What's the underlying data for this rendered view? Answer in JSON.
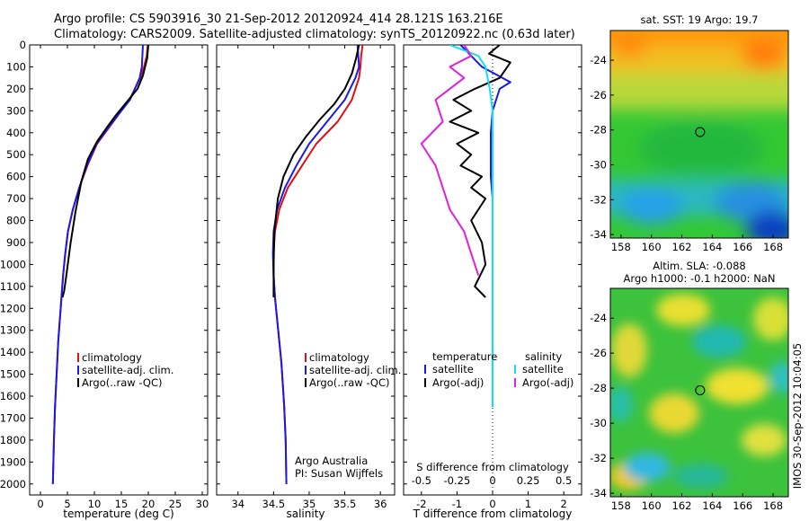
{
  "header": {
    "line1": "Argo profile: CS 5903916_30 21-Sep-2012 20120924_414 28.121S 163.216E",
    "line2": "Climatology: CARS2009. Satellite-adjusted climatology: synTS_20120922.nc (0.63d later)"
  },
  "colors": {
    "climatology": "#e01010",
    "satellite": "#1a1ae8",
    "argo": "#000000",
    "sal_satellite": "#10e0f0",
    "sal_argo": "#e020e0"
  },
  "chart_data": [
    {
      "type": "line",
      "xlabel": "temperature (deg C)",
      "xlim": [
        -2,
        31
      ],
      "xticks": [
        0,
        5,
        10,
        15,
        20,
        25,
        30
      ],
      "ylim": [
        0,
        2050
      ],
      "yticks": [
        0,
        100,
        200,
        300,
        400,
        500,
        600,
        700,
        800,
        900,
        1000,
        1100,
        1200,
        1300,
        1400,
        1500,
        1600,
        1700,
        1800,
        1900,
        2000
      ],
      "yaxis_reversed": true,
      "legend": [
        "climatology",
        "satellite-adj. clim.",
        "Argo(..raw -QC)"
      ],
      "legend_placement": "lower-right",
      "series": [
        {
          "name": "climatology",
          "x": [
            19.9,
            19.7,
            19.2,
            18.5,
            16.5,
            13.5,
            10.5,
            8.7,
            7.2,
            6.0,
            5.1,
            4.6,
            4.2,
            3.9,
            3.6,
            3.3,
            3.1,
            2.9,
            2.7,
            2.5,
            2.3
          ],
          "y": [
            0,
            50,
            100,
            150,
            250,
            350,
            450,
            550,
            650,
            750,
            850,
            950,
            1050,
            1150,
            1250,
            1350,
            1450,
            1550,
            1650,
            1800,
            2000
          ]
        },
        {
          "name": "satellite-adj. clim.",
          "x": [
            19.0,
            18.9,
            18.8,
            18.4,
            16.6,
            13.4,
            10.4,
            8.6,
            7.2,
            6.0,
            5.1,
            4.6,
            4.2,
            3.9,
            3.6,
            3.3,
            3.1,
            2.9,
            2.7,
            2.5,
            2.3
          ],
          "y": [
            0,
            50,
            100,
            150,
            250,
            350,
            450,
            550,
            650,
            750,
            850,
            950,
            1050,
            1150,
            1250,
            1350,
            1450,
            1550,
            1650,
            1800,
            2000
          ]
        },
        {
          "name": "Argo(..raw -QC)",
          "x": [
            20.0,
            19.8,
            19.0,
            18.0,
            16.0,
            14.0,
            12.2,
            10.5,
            8.8,
            7.6,
            6.5,
            5.6,
            4.8,
            4.4,
            4.1
          ],
          "y": [
            0,
            60,
            140,
            200,
            260,
            320,
            380,
            440,
            520,
            620,
            760,
            900,
            1050,
            1120,
            1150
          ]
        }
      ]
    },
    {
      "type": "line",
      "xlabel": "salinity",
      "xlim": [
        33.7,
        36.2
      ],
      "xticks": [
        34,
        34.5,
        35,
        35.5,
        36
      ],
      "ylim": [
        0,
        2050
      ],
      "yaxis_reversed": true,
      "legend": [
        "climatology",
        "satellite-adj. clim.",
        "Argo(..raw -QC)"
      ],
      "legend_placement": "lower-right",
      "annotation": [
        "Argo Australia",
        "PI: Susan Wijffels"
      ],
      "series": [
        {
          "name": "climatology",
          "x": [
            35.75,
            35.73,
            35.72,
            35.7,
            35.6,
            35.4,
            35.1,
            34.9,
            34.7,
            34.58,
            34.52,
            34.5,
            34.5,
            34.52,
            34.55,
            34.58,
            34.61,
            34.63,
            34.65,
            34.67,
            34.68
          ],
          "y": [
            0,
            50,
            100,
            150,
            250,
            350,
            450,
            550,
            650,
            750,
            850,
            950,
            1050,
            1150,
            1250,
            1350,
            1450,
            1550,
            1650,
            1800,
            2000
          ]
        },
        {
          "name": "satellite-adj. clim.",
          "x": [
            35.68,
            35.69,
            35.7,
            35.65,
            35.5,
            35.25,
            35.0,
            34.82,
            34.66,
            34.55,
            34.5,
            34.49,
            34.5,
            34.52,
            34.55,
            34.58,
            34.61,
            34.63,
            34.65,
            34.67,
            34.68
          ],
          "y": [
            0,
            50,
            100,
            150,
            250,
            350,
            450,
            550,
            650,
            750,
            850,
            950,
            1050,
            1150,
            1250,
            1350,
            1450,
            1550,
            1650,
            1800,
            2000
          ]
        },
        {
          "name": "Argo(..raw -QC)",
          "x": [
            35.7,
            35.66,
            35.6,
            35.5,
            35.35,
            35.15,
            34.95,
            34.78,
            34.64,
            34.56,
            34.51,
            34.5,
            34.5
          ],
          "y": [
            0,
            60,
            130,
            200,
            270,
            340,
            420,
            500,
            600,
            700,
            850,
            1000,
            1150
          ]
        }
      ]
    },
    {
      "type": "line",
      "xlabel": "T difference from climatology",
      "xticks": [
        -2,
        -1,
        0,
        1,
        2
      ],
      "xlim": [
        -2.5,
        2.5
      ],
      "top_axis_label": "S difference from climatology",
      "top_xticks": [
        "-0.5",
        "-0.25",
        "0",
        "0.25",
        "0.5"
      ],
      "ylim": [
        0,
        2050
      ],
      "yaxis_reversed": true,
      "legend_titles": [
        "temperature",
        "salinity"
      ],
      "legend": [
        "satellite",
        "Argo(-adj)",
        "satellite",
        "Argo(-adj)"
      ],
      "series": [
        {
          "name": "satellite",
          "group": "temperature",
          "x": [
            -0.9,
            -0.6,
            -0.3,
            0.5,
            0.2,
            0.0,
            -0.05,
            -0.05,
            -0.05,
            0.0,
            0.0,
            0.0,
            0.0,
            0.0,
            0.0,
            0.0,
            0.0,
            0.0,
            0.0
          ],
          "y": [
            0,
            50,
            100,
            170,
            200,
            300,
            400,
            500,
            600,
            700,
            800,
            900,
            1000,
            1100,
            1200,
            1300,
            1400,
            1500,
            1600
          ]
        },
        {
          "name": "Argo(-adj)",
          "group": "temperature",
          "x": [
            0.2,
            -0.1,
            0.5,
            0.2,
            -0.5,
            -1.1,
            -0.6,
            -1.2,
            -0.4,
            -1.0,
            -0.6,
            -0.9,
            -0.3,
            -0.6,
            -0.2,
            -0.6,
            -0.3,
            -0.2,
            -0.5,
            -0.2
          ],
          "y": [
            0,
            40,
            80,
            150,
            200,
            250,
            300,
            350,
            400,
            450,
            500,
            550,
            600,
            650,
            700,
            800,
            900,
            1000,
            1100,
            1150
          ]
        },
        {
          "name": "satellite",
          "group": "salinity",
          "x": [
            -0.3,
            -0.1,
            -0.05,
            -0.02,
            0.0,
            0.0,
            0.0,
            0.0,
            0.0,
            0.0,
            0.0,
            0.0,
            0.0,
            0.0,
            0.0,
            0.0,
            0.0,
            0.0,
            0.0
          ],
          "y": [
            0,
            50,
            100,
            200,
            300,
            400,
            500,
            600,
            700,
            800,
            900,
            1000,
            1100,
            1200,
            1300,
            1400,
            1500,
            1600,
            1650
          ]
        },
        {
          "name": "Argo(-adj)",
          "group": "salinity",
          "x": [
            -0.2,
            -0.15,
            -0.3,
            -0.2,
            -0.4,
            -0.35,
            -0.5,
            -0.4,
            -0.35,
            -0.3,
            -0.2,
            -0.15,
            -0.1
          ],
          "y": [
            0,
            50,
            100,
            150,
            250,
            350,
            450,
            550,
            650,
            750,
            850,
            950,
            1050
          ]
        }
      ]
    },
    {
      "type": "heatmap",
      "title": "sat. SST: 19  Argo: 19.7",
      "xticks": [
        158,
        160,
        162,
        164,
        166,
        168
      ],
      "yticks": [
        -24,
        -26,
        -28,
        -30,
        -32,
        -34
      ],
      "xlim": [
        157.3,
        169.0
      ],
      "ylim": [
        -34.2,
        -22.3
      ],
      "marker": {
        "lon": 163.2,
        "lat": -28.12
      }
    },
    {
      "type": "heatmap",
      "title_lines": [
        "Altim. SLA: -0.088",
        "Argo h1000: -0.1  h2000: NaN"
      ],
      "xticks": [
        158,
        160,
        162,
        164,
        166,
        168
      ],
      "yticks": [
        -24,
        -26,
        -28,
        -30,
        -32,
        -34
      ],
      "xlim": [
        157.3,
        169.0
      ],
      "ylim": [
        -34.2,
        -22.3
      ],
      "marker": {
        "lon": 163.2,
        "lat": -28.12
      }
    }
  ],
  "side_label": "IMOS 30-Sep-2012 10:04:05"
}
